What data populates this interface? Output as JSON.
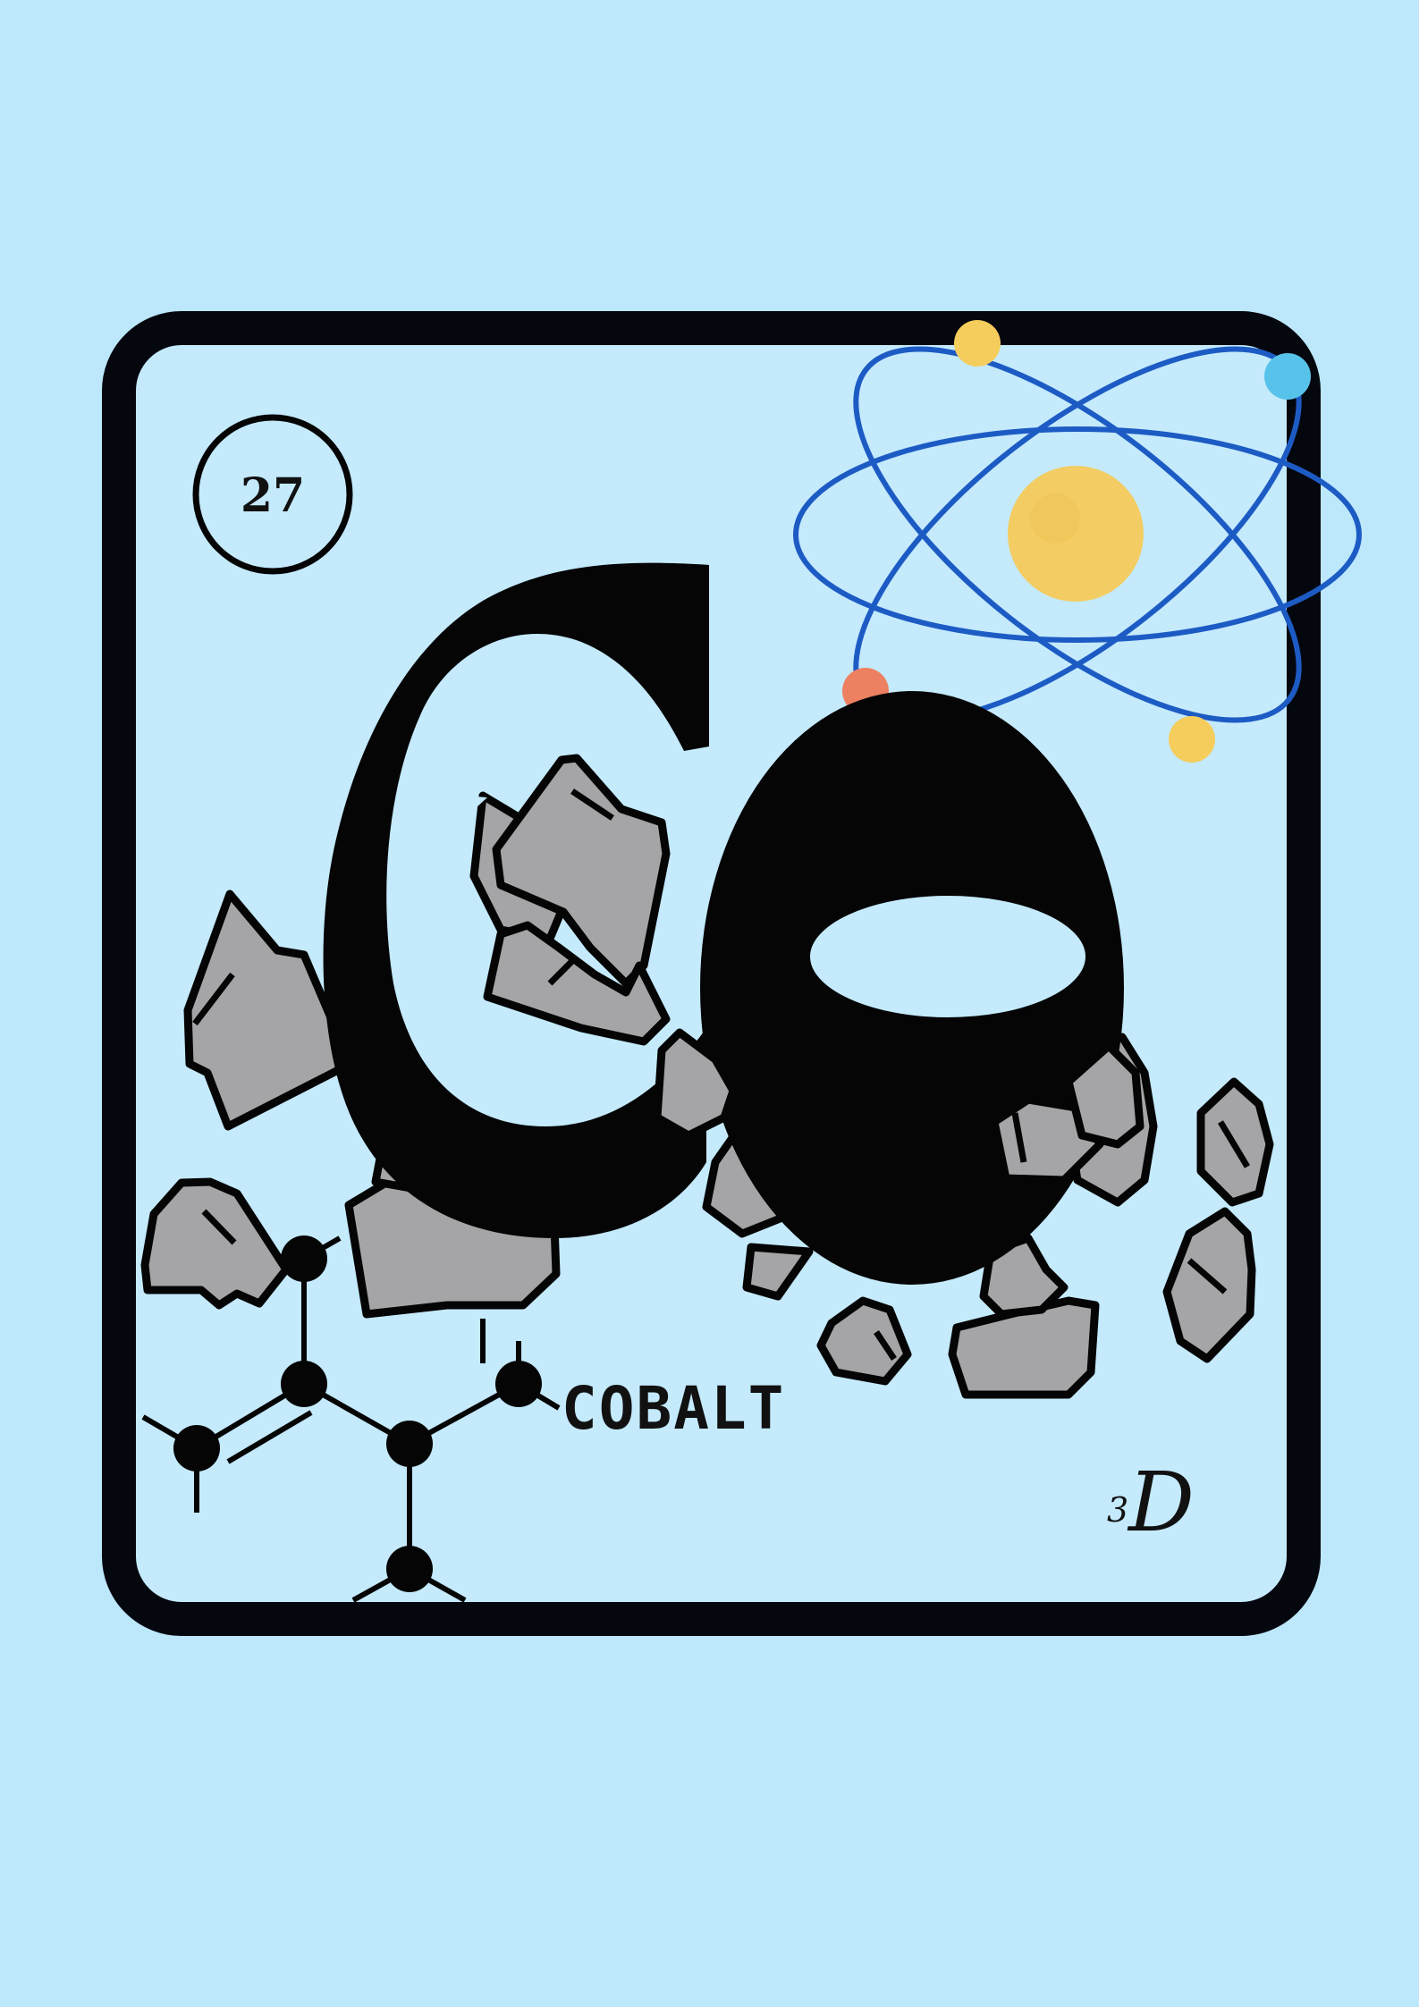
{
  "element": {
    "atomic_number": "27",
    "symbol": "Co",
    "name": "COBALT",
    "dimension_prefix": "3",
    "dimension_letter": "D"
  },
  "colors": {
    "background": "#bde8fc",
    "tile_fill": "#c4eafc",
    "tile_border": "#05070f",
    "orbit": "#1d5bc4",
    "nucleus": "#f3cd63",
    "electron_yellow": "#f5cd5c",
    "electron_blue": "#58c3ea",
    "electron_orange": "#ed8060",
    "rock_fill": "#a5a5a7",
    "ink": "#050505"
  },
  "icons": {
    "atom": "atom-icon",
    "molecule": "molecule-structure-icon",
    "rocks": "rock-fragment-icon"
  }
}
